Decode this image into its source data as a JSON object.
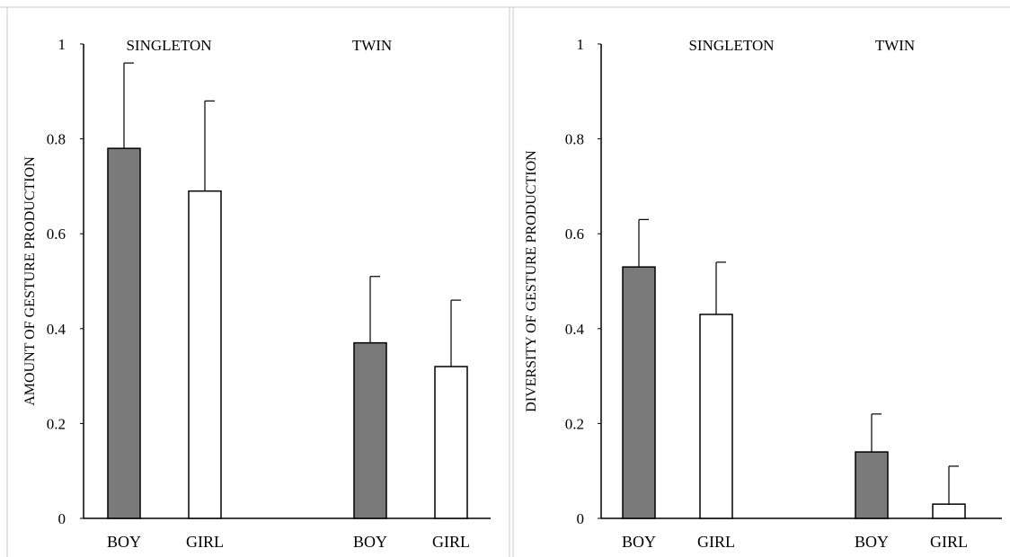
{
  "colors": {
    "boy": "#7a7a7a",
    "girl": "#ffffff",
    "stroke": "#000000",
    "frame": "#c8c8c8"
  },
  "chart_data": [
    {
      "type": "bar",
      "ylabel": "AMOUNT OF GESTURE PRODUCTION",
      "ylim": [
        0,
        1
      ],
      "yticks": [
        0,
        0.2,
        0.4,
        0.6,
        0.8,
        1
      ],
      "ytick_labels": [
        "0",
        "0.2",
        "0.4",
        "0.6",
        "0.8",
        "1"
      ],
      "groups": [
        {
          "label": "SINGLETON",
          "categories": [
            "BOY",
            "GIRL"
          ],
          "values": [
            0.78,
            0.69
          ],
          "errors": [
            0.18,
            0.19
          ]
        },
        {
          "label": "TWIN",
          "categories": [
            "BOY",
            "GIRL"
          ],
          "values": [
            0.37,
            0.32
          ],
          "errors": [
            0.14,
            0.14
          ]
        }
      ],
      "grid": false,
      "error_bars": "upper"
    },
    {
      "type": "bar",
      "ylabel": "DIVERSITY OF GESTURE PRODUCTION",
      "ylim": [
        0,
        1
      ],
      "yticks": [
        0,
        0.2,
        0.4,
        0.6,
        0.8,
        1
      ],
      "ytick_labels": [
        "0",
        "0.2",
        "0.4",
        "0.6",
        "0.8",
        "1"
      ],
      "groups": [
        {
          "label": "SINGLETON",
          "categories": [
            "BOY",
            "GIRL"
          ],
          "values": [
            0.53,
            0.43
          ],
          "errors": [
            0.1,
            0.11
          ]
        },
        {
          "label": "TWIN",
          "categories": [
            "BOY",
            "GIRL"
          ],
          "values": [
            0.14,
            0.03
          ],
          "errors": [
            0.08,
            0.08
          ]
        }
      ],
      "grid": false,
      "error_bars": "upper"
    }
  ]
}
